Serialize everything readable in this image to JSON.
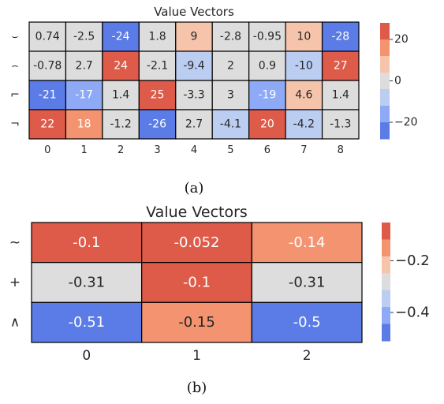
{
  "chart_data": [
    {
      "type": "heatmap",
      "title": "Value Vectors",
      "caption": "(a)",
      "rows": [
        "⌣",
        "⌢",
        "⌐",
        "¬"
      ],
      "columns": [
        "0",
        "1",
        "2",
        "3",
        "4",
        "5",
        "6",
        "7",
        "8"
      ],
      "values": [
        [
          0.74,
          -2.5,
          -24,
          1.8,
          9,
          -2.8,
          -0.95,
          10,
          -28
        ],
        [
          -0.78,
          2.7,
          24,
          -2.1,
          -9.4,
          2,
          0.9,
          -10,
          27
        ],
        [
          -21,
          -17,
          1.4,
          25,
          -3.3,
          3,
          -19,
          4.6,
          1.4
        ],
        [
          22,
          18,
          -1.2,
          -26,
          2.7,
          -4.1,
          20,
          -4.2,
          -1.3
        ]
      ],
      "cell_labels": [
        [
          "0.74",
          "-2.5",
          "-24",
          "1.8",
          "9",
          "-2.8",
          "-0.95",
          "10",
          "-28"
        ],
        [
          "-0.78",
          "2.7",
          "24",
          "-2.1",
          "-9.4",
          "2",
          "0.9",
          "-10",
          "27"
        ],
        [
          "-21",
          "-17",
          "1.4",
          "25",
          "-3.3",
          "3",
          "-19",
          "4.6",
          "1.4"
        ],
        [
          "22",
          "18",
          "-1.2",
          "-26",
          "2.7",
          "-4.1",
          "20",
          "-4.2",
          "-1.3"
        ]
      ],
      "colormap": "coolwarm",
      "vmin": -28,
      "vmax": 28,
      "colorbar_ticks": [
        20,
        0,
        -20
      ],
      "colorbar_tick_labels": [
        "20",
        "0",
        "−20"
      ]
    },
    {
      "type": "heatmap",
      "title": "Value Vectors",
      "caption": "(b)",
      "rows": [
        "~",
        "+",
        "∧"
      ],
      "columns": [
        "0",
        "1",
        "2"
      ],
      "values": [
        [
          -0.1,
          -0.052,
          -0.14
        ],
        [
          -0.31,
          -0.1,
          -0.31
        ],
        [
          -0.51,
          -0.15,
          -0.5
        ]
      ],
      "cell_labels": [
        [
          "-0.1",
          "-0.052",
          "-0.14"
        ],
        [
          "-0.31",
          "-0.1",
          "-0.31"
        ],
        [
          "-0.51",
          "-0.15",
          "-0.5"
        ]
      ],
      "colormap": "coolwarm",
      "vmin": -0.51,
      "vmax": -0.052,
      "colorbar_ticks": [
        -0.2,
        -0.4
      ],
      "colorbar_tick_labels": [
        "−0.2",
        "−0.4"
      ]
    }
  ],
  "colors": {
    "cold": "#5b7be6",
    "cold2": "#8ea9f5",
    "cold3": "#bccdf2",
    "neutral": "#dddddd",
    "warm3": "#f6c4ab",
    "warm2": "#f3936f",
    "warm": "#de5a49",
    "text_dark": "#262626",
    "text_light": "#ffffff"
  }
}
